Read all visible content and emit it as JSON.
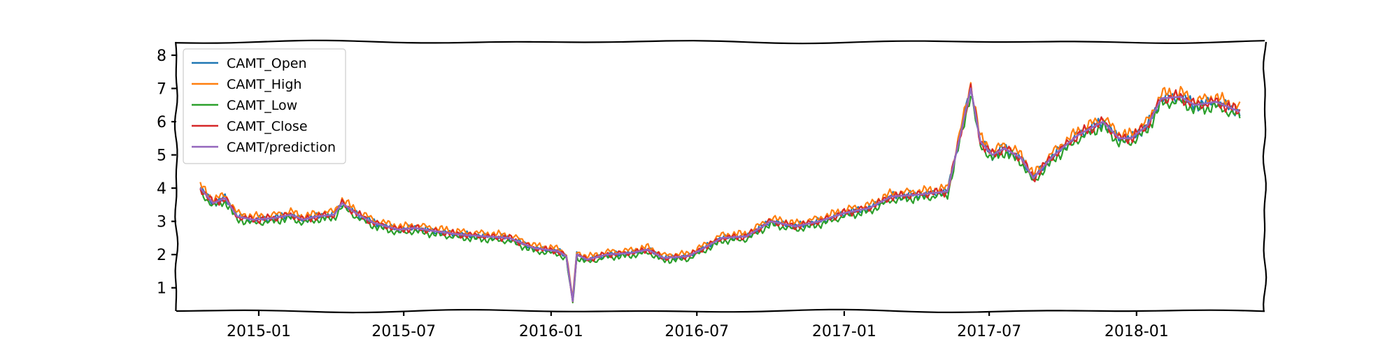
{
  "chart_data": {
    "type": "line",
    "title": "",
    "xlabel": "",
    "ylabel": "",
    "xlim": [
      "2014-09-20",
      "2018-06-10"
    ],
    "ylim": [
      0.3,
      8.4
    ],
    "grid": false,
    "legend_position": "top-left",
    "x_ticks": [
      "2015-01",
      "2015-07",
      "2016-01",
      "2016-07",
      "2017-01",
      "2017-07",
      "2018-01"
    ],
    "y_ticks": [
      1,
      2,
      3,
      4,
      5,
      6,
      7,
      8
    ],
    "prediction_key_points": [
      [
        "2014-10-20",
        4.0
      ],
      [
        "2014-11-05",
        3.55
      ],
      [
        "2014-11-20",
        3.7
      ],
      [
        "2014-12-05",
        3.15
      ],
      [
        "2014-12-25",
        3.05
      ],
      [
        "2015-01-20",
        3.1
      ],
      [
        "2015-02-10",
        3.2
      ],
      [
        "2015-02-25",
        3.05
      ],
      [
        "2015-03-15",
        3.15
      ],
      [
        "2015-04-05",
        3.2
      ],
      [
        "2015-04-15",
        3.55
      ],
      [
        "2015-05-05",
        3.2
      ],
      [
        "2015-05-25",
        2.95
      ],
      [
        "2015-06-25",
        2.75
      ],
      [
        "2015-07-15",
        2.8
      ],
      [
        "2015-08-10",
        2.7
      ],
      [
        "2015-09-10",
        2.6
      ],
      [
        "2015-10-10",
        2.55
      ],
      [
        "2015-11-10",
        2.5
      ],
      [
        "2015-12-10",
        2.2
      ],
      [
        "2016-01-10",
        2.1
      ],
      [
        "2016-01-20",
        1.95
      ],
      [
        "2016-01-28",
        0.6
      ],
      [
        "2016-02-02",
        2.0
      ],
      [
        "2016-02-15",
        1.85
      ],
      [
        "2016-03-10",
        2.0
      ],
      [
        "2016-04-10",
        2.05
      ],
      [
        "2016-05-01",
        2.15
      ],
      [
        "2016-05-20",
        1.9
      ],
      [
        "2016-06-20",
        1.95
      ],
      [
        "2016-07-10",
        2.2
      ],
      [
        "2016-08-01",
        2.5
      ],
      [
        "2016-09-01",
        2.55
      ],
      [
        "2016-10-01",
        3.0
      ],
      [
        "2016-11-01",
        2.85
      ],
      [
        "2016-12-01",
        3.0
      ],
      [
        "2017-01-01",
        3.25
      ],
      [
        "2017-02-01",
        3.4
      ],
      [
        "2017-03-01",
        3.75
      ],
      [
        "2017-04-01",
        3.8
      ],
      [
        "2017-05-10",
        3.9
      ],
      [
        "2017-05-25",
        5.5
      ],
      [
        "2017-06-08",
        7.0
      ],
      [
        "2017-06-20",
        5.4
      ],
      [
        "2017-07-05",
        5.0
      ],
      [
        "2017-07-20",
        5.2
      ],
      [
        "2017-08-10",
        4.9
      ],
      [
        "2017-08-25",
        4.3
      ],
      [
        "2017-09-20",
        5.0
      ],
      [
        "2017-10-20",
        5.6
      ],
      [
        "2017-11-20",
        6.0
      ],
      [
        "2017-12-10",
        5.5
      ],
      [
        "2017-12-25",
        5.5
      ],
      [
        "2018-01-15",
        5.9
      ],
      [
        "2018-02-01",
        6.7
      ],
      [
        "2018-02-25",
        6.75
      ],
      [
        "2018-03-15",
        6.5
      ],
      [
        "2018-04-10",
        6.6
      ],
      [
        "2018-05-10",
        6.3
      ]
    ],
    "series": [
      {
        "name": "CAMT_Open",
        "color": "#1f77b4",
        "offset": 0.0
      },
      {
        "name": "CAMT_High",
        "color": "#ff7f0e",
        "offset": 0.1
      },
      {
        "name": "CAMT_Low",
        "color": "#2ca02c",
        "offset": -0.1
      },
      {
        "name": "CAMT_Close",
        "color": "#d62728",
        "offset": 0.0
      },
      {
        "name": "CAMT/prediction",
        "color": "#9467bd",
        "offset": 0.0
      }
    ]
  }
}
